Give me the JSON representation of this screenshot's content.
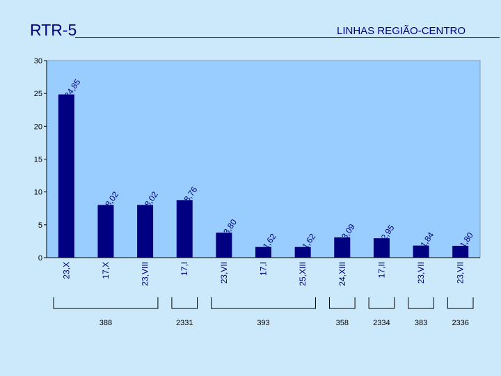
{
  "header": {
    "title": "RTR-5",
    "subtitle": "LINHAS REGIÃO-CENTRO"
  },
  "colors": {
    "background": "#cce8fb",
    "plot_area": "#99ccff",
    "bar": "#000080",
    "text": "#000080"
  },
  "chart_data": {
    "type": "bar",
    "title": "",
    "xlabel": "",
    "ylabel": "",
    "ylim": [
      0,
      30
    ],
    "yticks": [
      0,
      5,
      10,
      15,
      20,
      25,
      30
    ],
    "grid": false,
    "legend": "none",
    "categories": [
      "23,X",
      "17,X",
      "23,VIII",
      "17,I",
      "23,VII",
      "17,I",
      "25,XIII",
      "24,XIII",
      "17,II",
      "23,VII",
      "23,VII"
    ],
    "values": [
      24.85,
      8.02,
      8.02,
      8.76,
      3.8,
      1.62,
      1.62,
      3.09,
      2.95,
      1.84,
      1.8
    ],
    "value_labels": [
      "24,85",
      "8,02",
      "8,02",
      "8,76",
      "3,80",
      "1,62",
      "1,62",
      "3,09",
      "2,95",
      "1,84",
      "1,80"
    ],
    "groups": [
      {
        "label": "388",
        "first": 0,
        "last": 2
      },
      {
        "label": "2331",
        "first": 3,
        "last": 3
      },
      {
        "label": "393",
        "first": 4,
        "last": 6
      },
      {
        "label": "358",
        "first": 7,
        "last": 7
      },
      {
        "label": "2334",
        "first": 8,
        "last": 8
      },
      {
        "label": "383",
        "first": 9,
        "last": 9
      },
      {
        "label": "2336",
        "first": 10,
        "last": 10
      }
    ]
  }
}
